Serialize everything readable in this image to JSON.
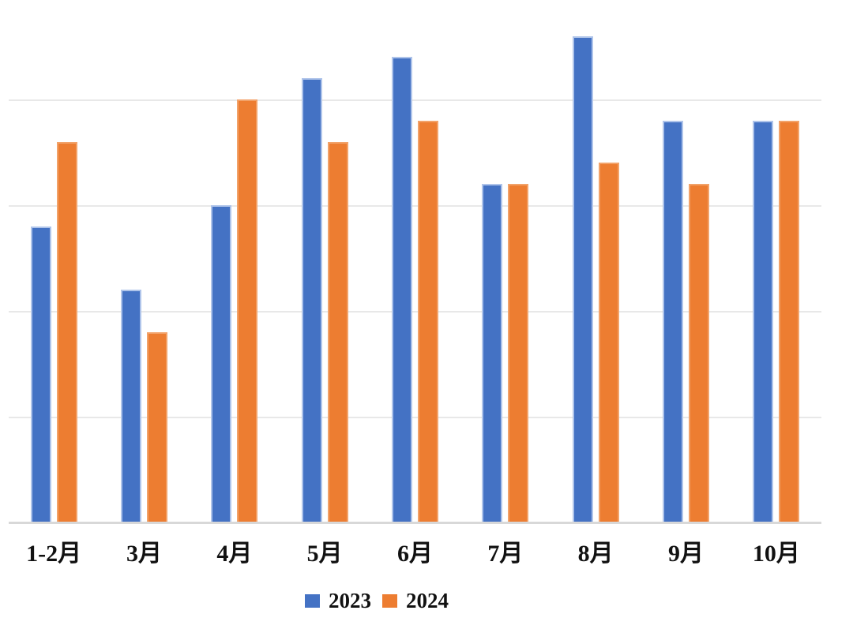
{
  "chart_data": {
    "type": "bar",
    "title": "",
    "xlabel": "",
    "ylabel": "",
    "categories": [
      "1-2月",
      "3月",
      "4月",
      "5月",
      "6月",
      "7月",
      "8月",
      "9月",
      "10月"
    ],
    "series": [
      {
        "name": "2023",
        "color": "#4472C4",
        "border_color": "#AFC4EA",
        "values": [
          14,
          11,
          15,
          21,
          22,
          16,
          23,
          19,
          19
        ]
      },
      {
        "name": "2024",
        "color": "#ED7D31",
        "border_color": "#F2A269",
        "values": [
          18,
          9,
          20,
          18,
          19,
          16,
          17,
          16,
          19
        ]
      }
    ],
    "ylim": [
      0,
      24.8
    ],
    "gridline_step": 5,
    "grid": "horizontal",
    "y_axis_labels_visible": false,
    "legend_position": "bottom",
    "note": "no y-axis tick labels visible; values estimated from gridlines (one gridline interval = 5 units)"
  },
  "legend": {
    "items": [
      {
        "label": "2023",
        "color": "#4472C4"
      },
      {
        "label": "2024",
        "color": "#ED7D31"
      }
    ]
  }
}
